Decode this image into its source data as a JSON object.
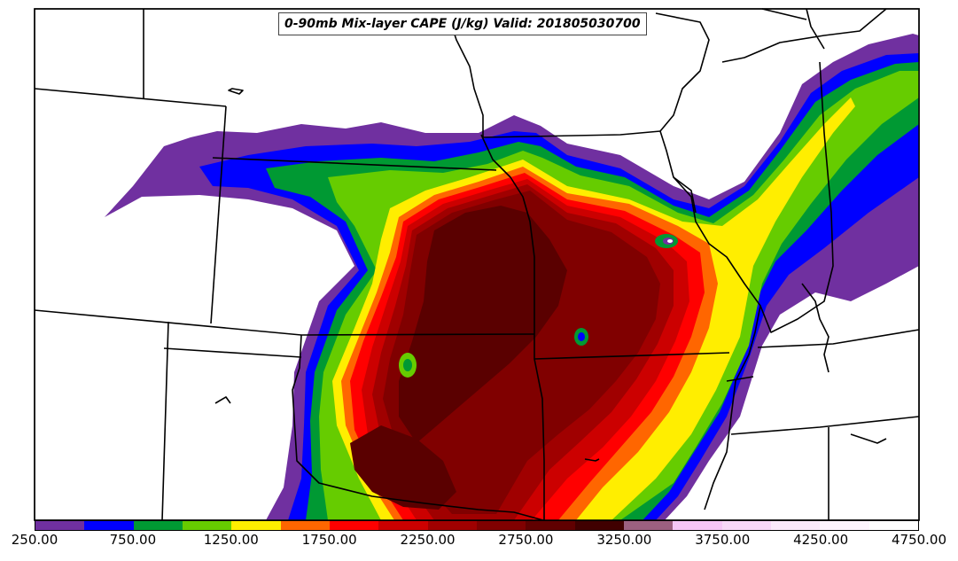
{
  "title": "0-90mb Mix-layer CAPE (J/kg) Valid: 201805030700",
  "colorbar": {
    "colors": [
      "#7030a0",
      "#0000ff",
      "#009933",
      "#66cc00",
      "#ffee00",
      "#ff6600",
      "#ff0000",
      "#cc0000",
      "#a00000",
      "#800000",
      "#600000",
      "#400000",
      "#9c6080",
      "#f6c6f6",
      "#f8d8f8",
      "#fbe9fb",
      "#fdf4fd",
      "#ffffff"
    ],
    "ticks": [
      {
        "value": 250,
        "label": "250.00"
      },
      {
        "value": 750,
        "label": "750.00"
      },
      {
        "value": 1250,
        "label": "1250.00"
      },
      {
        "value": 1750,
        "label": "1750.00"
      },
      {
        "value": 2250,
        "label": "2250.00"
      },
      {
        "value": 2750,
        "label": "2750.00"
      },
      {
        "value": 3250,
        "label": "3250.00"
      },
      {
        "value": 3750,
        "label": "3750.00"
      },
      {
        "value": 4250,
        "label": "4250.00"
      },
      {
        "value": 4750,
        "label": "4750.00"
      }
    ],
    "range": [
      250,
      4750
    ]
  }
}
